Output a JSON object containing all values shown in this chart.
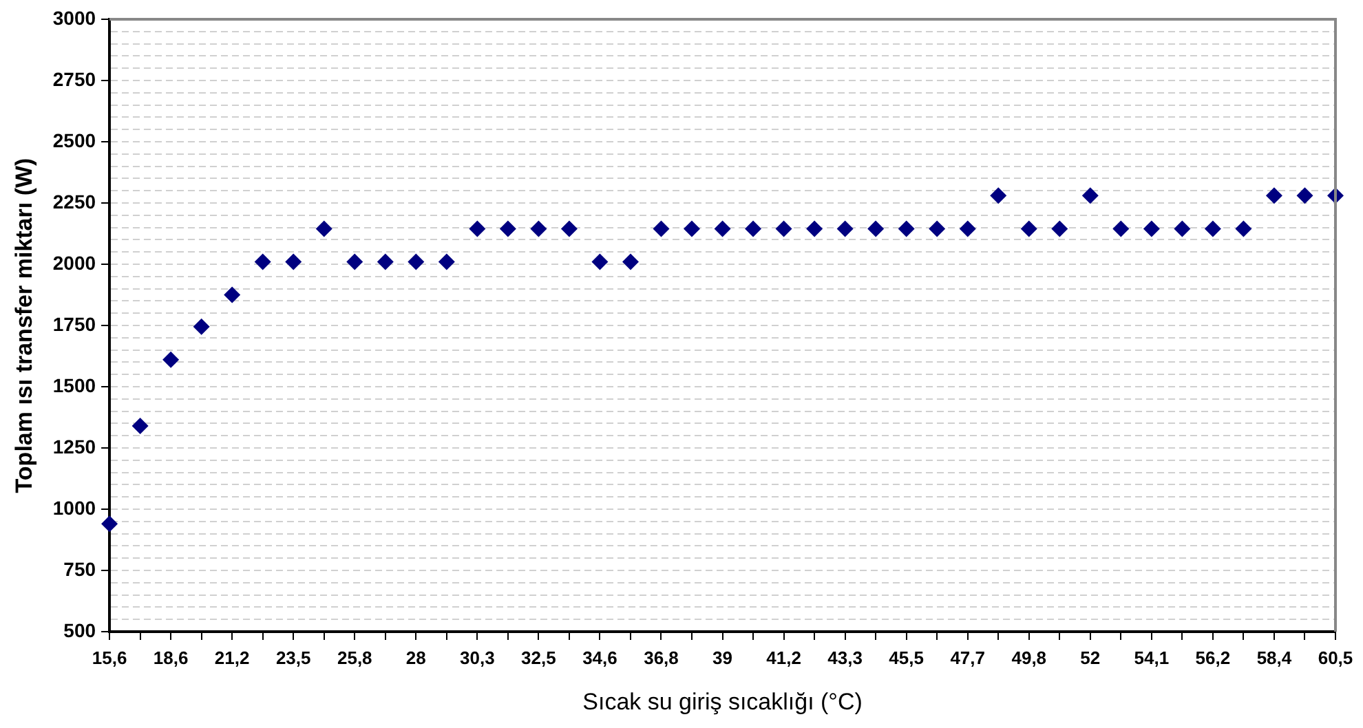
{
  "chart_data": {
    "type": "scatter",
    "xlabel": "Sıcak su giriş sıcaklığı (°C)",
    "ylabel": "Toplam ısı transfer miktarı (W)",
    "categories": [
      "15,6",
      null,
      "18,6",
      null,
      "21,2",
      null,
      "23,5",
      null,
      "25,8",
      null,
      "28",
      null,
      "30,3",
      null,
      "32,5",
      null,
      "34,6",
      null,
      "36,8",
      null,
      "39",
      null,
      "41,2",
      null,
      "43,3",
      null,
      "45,5",
      null,
      "47,7",
      null,
      "49,8",
      null,
      "52",
      null,
      "54,1",
      null,
      "56,2",
      null,
      "58,4",
      null,
      "60,5"
    ],
    "values": [
      940,
      1340,
      1610,
      1745,
      1875,
      2010,
      2010,
      2145,
      2010,
      2010,
      2010,
      2010,
      2145,
      2145,
      2145,
      2145,
      2010,
      2010,
      2145,
      2145,
      2145,
      2145,
      2145,
      2145,
      2145,
      2145,
      2145,
      2145,
      2145,
      2280,
      2145,
      2145,
      2280,
      2145,
      2145,
      2145,
      2145,
      2145,
      2280,
      2280,
      2280
    ],
    "color": "#000080",
    "marker": "diamond",
    "grid": "y",
    "ylim": [
      500,
      3000
    ],
    "yticks": [
      500,
      {
        "value": 550,
        "label": null
      },
      {
        "value": 600,
        "label": null
      },
      {
        "value": 650,
        "label": null
      },
      {
        "value": 700,
        "label": null
      },
      750,
      {
        "value": 800,
        "label": null
      },
      {
        "value": 850,
        "label": null
      },
      {
        "value": 900,
        "label": null
      },
      {
        "value": 950,
        "label": null
      },
      1000,
      {
        "value": 1050,
        "label": null
      },
      {
        "value": 1100,
        "label": null
      },
      {
        "value": 1150,
        "label": null
      },
      {
        "value": 1200,
        "label": null
      },
      1250,
      {
        "value": 1300,
        "label": null
      },
      {
        "value": 1350,
        "label": null
      },
      {
        "value": 1400,
        "label": null
      },
      {
        "value": 1450,
        "label": null
      },
      1500,
      {
        "value": 1550,
        "label": null
      },
      {
        "value": 1600,
        "label": null
      },
      {
        "value": 1650,
        "label": null
      },
      {
        "value": 1700,
        "label": null
      },
      1750,
      {
        "value": 1800,
        "label": null
      },
      {
        "value": 1850,
        "label": null
      },
      {
        "value": 1900,
        "label": null
      },
      {
        "value": 1950,
        "label": null
      },
      2000,
      {
        "value": 2050,
        "label": null
      },
      {
        "value": 2100,
        "label": null
      },
      {
        "value": 2150,
        "label": null
      },
      {
        "value": 2200,
        "label": null
      },
      2250,
      {
        "value": 2300,
        "label": null
      },
      {
        "value": 2350,
        "label": null
      },
      {
        "value": 2400,
        "label": null
      },
      {
        "value": 2450,
        "label": null
      },
      2500,
      {
        "value": 2550,
        "label": null
      },
      {
        "value": 2600,
        "label": null
      },
      {
        "value": 2650,
        "label": null
      },
      {
        "value": 2700,
        "label": null
      },
      2750,
      {
        "value": 2800,
        "label": null
      },
      {
        "value": 2850,
        "label": null
      },
      {
        "value": 2900,
        "label": null
      },
      {
        "value": 2950,
        "label": null
      },
      3000
    ]
  }
}
